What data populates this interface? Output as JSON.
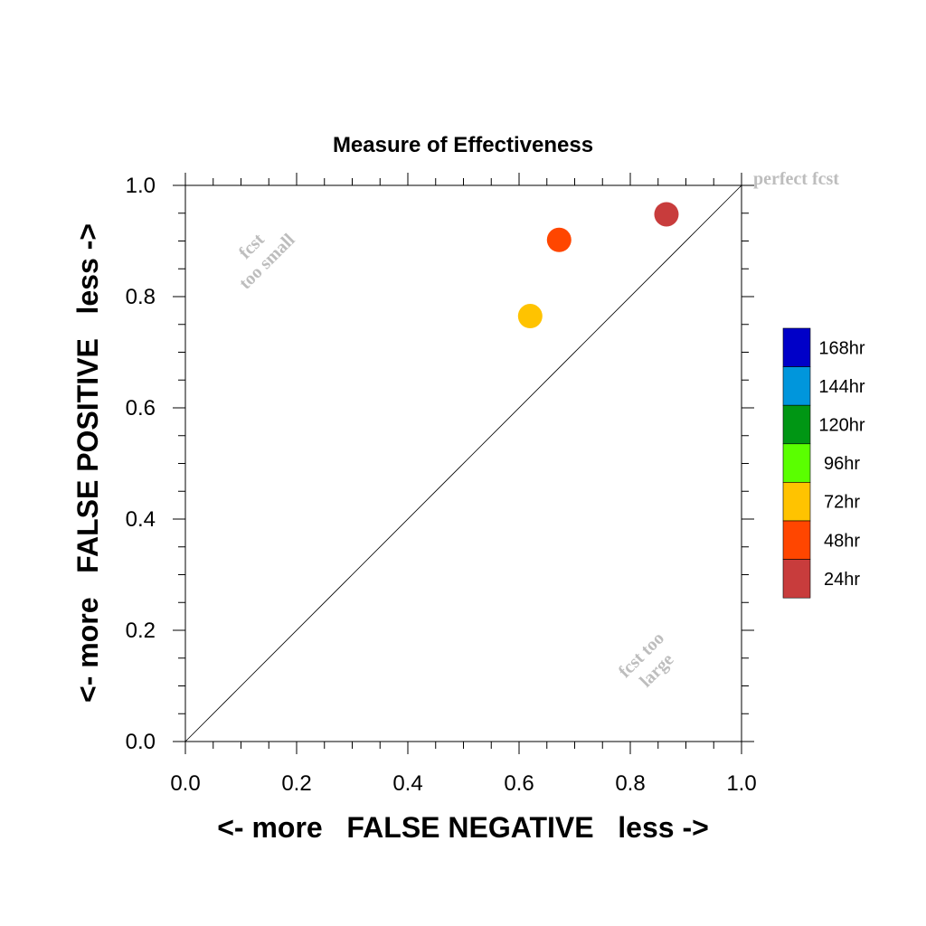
{
  "chart_data": {
    "type": "scatter",
    "title": "Measure of Effectiveness",
    "xlabel": "<- more   FALSE NEGATIVE   less ->",
    "ylabel": "<- more   FALSE POSITIVE   less ->",
    "xlim": [
      0.0,
      1.0
    ],
    "ylim": [
      0.0,
      1.0
    ],
    "x_ticks": [
      "0.0",
      "0.2",
      "0.4",
      "0.6",
      "0.8",
      "1.0"
    ],
    "y_ticks": [
      "0.0",
      "0.2",
      "0.4",
      "0.6",
      "0.8",
      "1.0"
    ],
    "diagonal": true,
    "grid": false,
    "legend_position": "right",
    "annotations": {
      "perfect": "perfect fcst",
      "too_small": [
        "fcst",
        "too small"
      ],
      "too_large": [
        "fcst too",
        "large"
      ]
    },
    "legend": [
      {
        "label": "168hr",
        "color": "#0000c8"
      },
      {
        "label": "144hr",
        "color": "#0096dc"
      },
      {
        "label": "120hr",
        "color": "#009614"
      },
      {
        "label": "96hr",
        "color": "#5aff00"
      },
      {
        "label": "72hr",
        "color": "#ffc300"
      },
      {
        "label": "48hr",
        "color": "#ff4600"
      },
      {
        "label": "24hr",
        "color": "#c83c3c"
      }
    ],
    "points": [
      {
        "series": "72hr",
        "x": 0.62,
        "y": 0.765,
        "color": "#ffc300"
      },
      {
        "series": "48hr",
        "x": 0.672,
        "y": 0.902,
        "color": "#ff4600"
      },
      {
        "series": "24hr",
        "x": 0.865,
        "y": 0.948,
        "color": "#c83c3c"
      }
    ]
  }
}
